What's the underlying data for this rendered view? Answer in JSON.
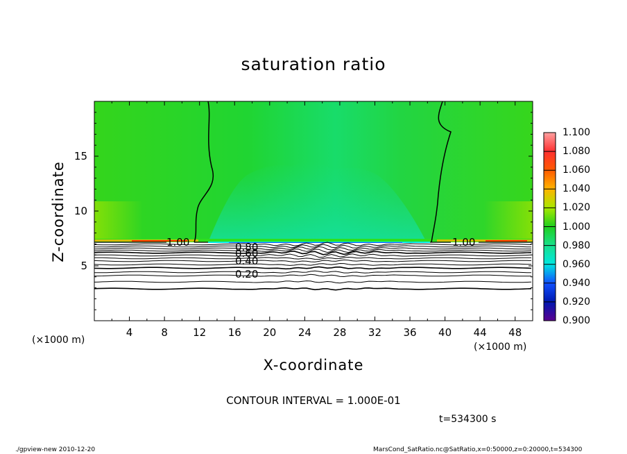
{
  "chart_data": {
    "type": "heatmap",
    "title": "saturation ratio",
    "xlabel": "X-coordinate",
    "ylabel": "Z-coordinate",
    "x_unit": "(×1000 m)",
    "y_unit": "(×1000 m)",
    "xlim": [
      0,
      50
    ],
    "ylim": [
      0,
      20
    ],
    "x_ticks": [
      "4",
      "8",
      "12",
      "16",
      "20",
      "24",
      "28",
      "32",
      "36",
      "40",
      "44",
      "48"
    ],
    "y_ticks": [
      "5",
      "10",
      "15"
    ],
    "colorbar": {
      "ticks": [
        "1.100",
        "1.080",
        "1.060",
        "1.040",
        "1.020",
        "1.000",
        "0.980",
        "0.960",
        "0.940",
        "0.920",
        "0.900"
      ],
      "colors": [
        "#ff8f8f",
        "#ff2a2a",
        "#ff5a00",
        "#ffb400",
        "#a8e800",
        "#1ecf1e",
        "#19e38c",
        "#00e8e0",
        "#1050ff",
        "#0018b0",
        "#5a0090"
      ]
    },
    "contour_labels": [
      "1.00",
      "1.00",
      "0.80",
      "0.60",
      "0.40",
      "0.20"
    ],
    "contour_interval": "CONTOUR INTERVAL = 1.000E-01",
    "time": "t=534300 s"
  },
  "footer": {
    "left": "./gpview-new  2010-12-20",
    "right": "MarsCond_SatRatio.nc@SatRatio,x=0:50000,z=0:20000,t=534300"
  }
}
